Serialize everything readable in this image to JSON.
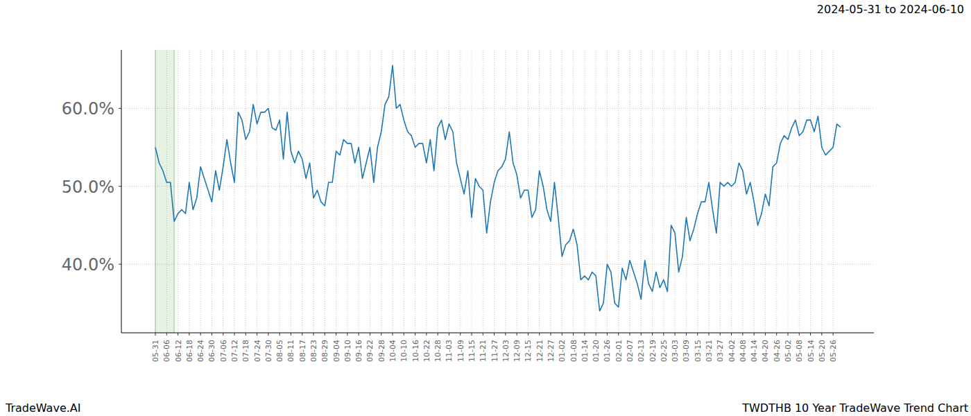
{
  "chart_data": {
    "type": "line",
    "title": "2024-05-31 to 2024-06-10",
    "source": "TradeWave.AI",
    "caption": "TWDTHB 10 Year TradeWave Trend Chart",
    "highlight": [
      "05-31",
      "06-10"
    ],
    "color": "#1f77b4",
    "grid": true,
    "ylim": [
      31.2,
      67.5
    ],
    "yticks": [
      {
        "value": 40,
        "label": "40.0%"
      },
      {
        "value": 50,
        "label": "50.0%"
      },
      {
        "value": 60,
        "label": "60.0%"
      }
    ],
    "categories": [
      "05-31",
      null,
      null,
      "06-06",
      null,
      null,
      "06-12",
      null,
      null,
      "06-18",
      null,
      null,
      "06-24",
      null,
      null,
      "06-30",
      null,
      null,
      "07-06",
      null,
      null,
      "07-12",
      null,
      null,
      "07-18",
      null,
      null,
      "07-24",
      null,
      null,
      "07-30",
      null,
      null,
      "08-05",
      null,
      null,
      "08-11",
      null,
      null,
      "08-17",
      null,
      null,
      "08-23",
      null,
      null,
      "08-29",
      null,
      null,
      "09-04",
      null,
      null,
      "09-10",
      null,
      null,
      "09-16",
      null,
      null,
      "09-22",
      null,
      null,
      "09-28",
      null,
      null,
      "10-04",
      null,
      null,
      "10-10",
      null,
      null,
      "10-16",
      null,
      null,
      "10-22",
      null,
      null,
      "10-28",
      null,
      null,
      "11-03",
      null,
      null,
      "11-09",
      null,
      null,
      "11-15",
      null,
      null,
      "11-21",
      null,
      null,
      "11-27",
      null,
      null,
      "12-03",
      null,
      null,
      "12-09",
      null,
      null,
      "12-15",
      null,
      null,
      "12-21",
      null,
      null,
      "12-27",
      null,
      null,
      "01-02",
      null,
      null,
      "01-08",
      null,
      null,
      "01-14",
      null,
      null,
      "01-20",
      null,
      null,
      "01-26",
      null,
      null,
      "02-01",
      null,
      null,
      "02-07",
      null,
      null,
      "02-13",
      null,
      null,
      "02-19",
      null,
      null,
      "02-25",
      null,
      null,
      "03-03",
      null,
      null,
      "03-09",
      null,
      null,
      "03-15",
      null,
      null,
      "03-21",
      null,
      null,
      "03-27",
      null,
      null,
      "04-02",
      null,
      null,
      "04-08",
      null,
      null,
      "04-14",
      null,
      null,
      "04-20",
      null,
      null,
      "04-26",
      null,
      null,
      "05-02",
      null,
      null,
      "05-08",
      null,
      null,
      "05-14",
      null,
      null,
      "05-20",
      null,
      null,
      "05-26",
      null,
      null
    ],
    "values": [
      55,
      53,
      52,
      50.5,
      50.5,
      45.5,
      46.5,
      47,
      46.5,
      50.5,
      47,
      48.5,
      52.5,
      51,
      49.5,
      48,
      52,
      49.5,
      52.5,
      56,
      53,
      50.5,
      59.5,
      58.5,
      56,
      57,
      60.5,
      58,
      59.5,
      59.5,
      60,
      57.5,
      57.2,
      58.5,
      53.5,
      59.5,
      54.5,
      53,
      54.5,
      53.5,
      51,
      53,
      48.5,
      49.5,
      48,
      47.5,
      50.5,
      50.5,
      54.5,
      54,
      56,
      55.5,
      55.5,
      53,
      55,
      51,
      53,
      55,
      50.5,
      55,
      57,
      60.5,
      61.5,
      65.5,
      60,
      60.5,
      58.5,
      57,
      56.5,
      55,
      55.5,
      55.5,
      53,
      56,
      52,
      57.5,
      58.5,
      56,
      58,
      57,
      53,
      51,
      49,
      52,
      46,
      51,
      50,
      49.5,
      44,
      48,
      50.5,
      52,
      52.5,
      53.5,
      57,
      53,
      51.5,
      48.5,
      49.5,
      49.5,
      46,
      47,
      52,
      50,
      47,
      45.5,
      50.5,
      46,
      41,
      42.5,
      43,
      44.5,
      42.5,
      38,
      38.5,
      38,
      39,
      38.5,
      34,
      35,
      40,
      39,
      35,
      34.5,
      39.5,
      38,
      40.5,
      39,
      37.5,
      35.5,
      40.5,
      37.5,
      36.5,
      39,
      37,
      38,
      36.5,
      45,
      44,
      39,
      41,
      46,
      43,
      44.5,
      46.5,
      48,
      48,
      50.5,
      47,
      44,
      50.5,
      50,
      50.5,
      50,
      50.5,
      53,
      52,
      49,
      50.5,
      48,
      45,
      46.5,
      49,
      47.5,
      52.5,
      53,
      55.5,
      56.5,
      56,
      57.5,
      58.5,
      56.5,
      57,
      58.5,
      58.5,
      57,
      59,
      55,
      54,
      54.5,
      55,
      58,
      57.6
    ]
  }
}
